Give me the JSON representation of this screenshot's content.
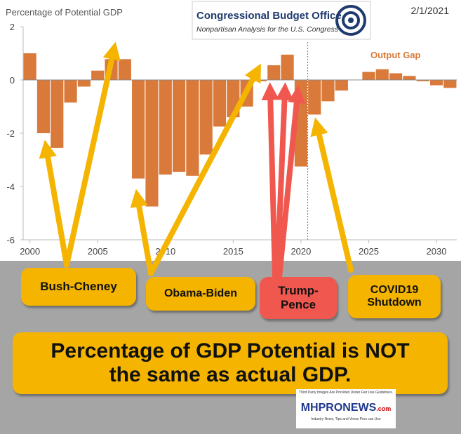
{
  "chart_data": {
    "type": "bar",
    "ylabel": "Percentage of Potential GDP",
    "date": "2/1/2021",
    "logo": {
      "title": "Congressional Budget Office",
      "subtitle": "Nonpartisan Analysis for the U.S. Congress"
    },
    "x": [
      2000,
      2001,
      2002,
      2003,
      2004,
      2005,
      2006,
      2007,
      2008,
      2009,
      2010,
      2011,
      2012,
      2013,
      2014,
      2015,
      2016,
      2017,
      2018,
      2019,
      2020,
      2021,
      2022,
      2023,
      2024,
      2025,
      2026,
      2027,
      2028,
      2029,
      2030,
      2031
    ],
    "series": [
      {
        "name": "Output Gap",
        "color": "#d9793a",
        "values": [
          1.0,
          -2.0,
          -2.55,
          -0.85,
          -0.25,
          0.35,
          0.78,
          0.78,
          -3.7,
          -4.75,
          -3.55,
          -3.45,
          -3.6,
          -2.8,
          -1.75,
          -1.4,
          -1.0,
          -0.05,
          0.55,
          0.95,
          -3.25,
          -1.3,
          -0.8,
          -0.4,
          0.0,
          0.3,
          0.4,
          0.25,
          0.15,
          -0.05,
          -0.2,
          -0.3
        ]
      }
    ],
    "xlim": [
      1999.5,
      2031.5
    ],
    "xticks": [
      2000,
      2005,
      2010,
      2015,
      2020,
      2025,
      2030
    ],
    "ylim": [
      -6,
      2
    ],
    "yticks": [
      2,
      0,
      -2,
      -4,
      -6
    ],
    "divider_x": 2020.5,
    "callouts": [
      "Bush-Cheney",
      "Obama-Biden",
      "Trump-Pence",
      "COVID19 Shutdown"
    ],
    "note": "Percentage of GDP Potential is NOT the same as actual GDP.",
    "watermark": {
      "notice": "Third Party Images Are Provided Under Fair Use Guidelines.",
      "brand": "MHPRONEWS",
      "domain": ".com",
      "tagline": "Industry News, Tips and Views Pros can Use"
    }
  }
}
